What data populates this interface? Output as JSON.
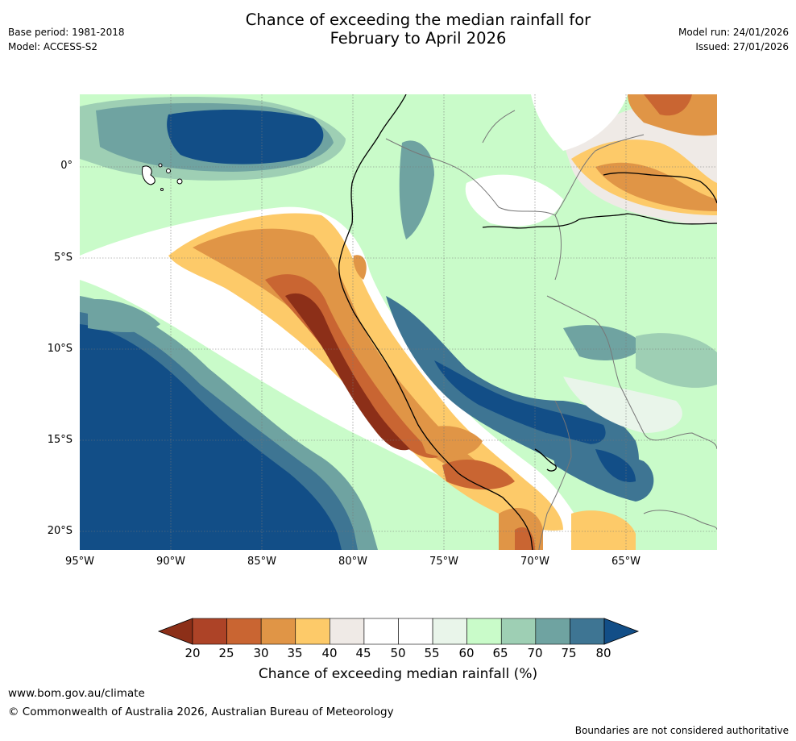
{
  "header": {
    "title_line1": "Chance of exceeding the median rainfall for",
    "title_line2": "February to April 2026",
    "base_period": "Base period: 1981-2018",
    "model": "Model: ACCESS-S2",
    "model_run": "Model run: 24/01/2026",
    "issued": "Issued: 27/01/2026"
  },
  "axes": {
    "lat_labels": [
      "0°",
      "5°S",
      "10°S",
      "15°S",
      "20°S"
    ],
    "lon_labels": [
      "95°W",
      "90°W",
      "85°W",
      "80°W",
      "75°W",
      "70°W",
      "65°W"
    ]
  },
  "colorbar": {
    "title": "Chance of exceeding median rainfall (%)",
    "tick_labels": [
      "20",
      "25",
      "30",
      "35",
      "40",
      "45",
      "50",
      "55",
      "60",
      "65",
      "70",
      "75",
      "80"
    ],
    "colors": {
      "below20": "#8c2f18",
      "c20_25": "#ad4327",
      "c25_30": "#c96532",
      "c30_35": "#e09546",
      "c35_40": "#fdca69",
      "c40_45": "#efeae6",
      "c45_50": "#ffffff",
      "c50_55": "#ffffff",
      "c55_60": "#e9f5ea",
      "c60_65": "#c9fbc9",
      "c65_70": "#9ecfb4",
      "c70_75": "#6fa3a1",
      "c75_80": "#3e7593",
      "above80": "#124e87"
    }
  },
  "footer": {
    "website": "www.bom.gov.au/climate",
    "copyright": "© Commonwealth of Australia 2026, Australian Bureau of Meteorology",
    "disclaimer": "Boundaries are not considered authoritative"
  }
}
